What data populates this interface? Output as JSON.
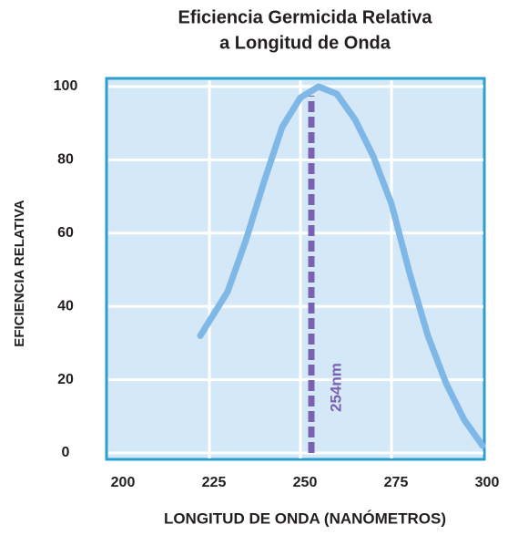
{
  "chart_data": {
    "type": "line",
    "title": [
      "Eficiencia Germicida Relativa",
      "a Longitud de Onda"
    ],
    "x_label": "LONGITUD DE ONDA (NANÓMETROS)",
    "y_label": "EFICIENCIA RELATIVA",
    "x": [
      222.5,
      230,
      235,
      240,
      245,
      250,
      255,
      260,
      265,
      270,
      275,
      280,
      285,
      290,
      295,
      300
    ],
    "series": [
      {
        "color": "#7fb8e6",
        "values": [
          32,
          44,
          58,
          74,
          89,
          97,
          100,
          98,
          91,
          81,
          68,
          49,
          32,
          19,
          9,
          2
        ]
      }
    ],
    "xlim": [
      200,
      300
    ],
    "xticks": [
      200,
      225,
      250,
      275,
      300
    ],
    "ylim": [
      0,
      100
    ],
    "yticks": [
      0,
      20,
      40,
      60,
      80,
      100
    ],
    "grid": true,
    "annotation": {
      "x": 254,
      "label": "254nm",
      "color": "#7b62b0"
    }
  }
}
